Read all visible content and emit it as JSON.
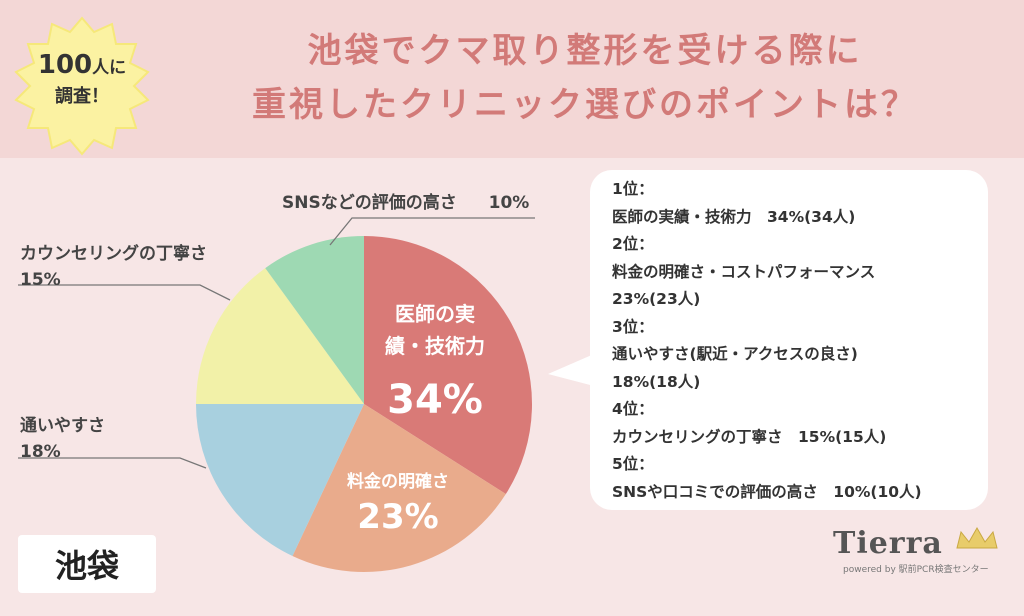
{
  "header": {
    "badge": {
      "number": "100",
      "suffix": "人に",
      "line2": "調査！"
    },
    "title_line1": "池袋でクマ取り整形を受ける際に",
    "title_line2": "重視したクリニック選びのポイントは？"
  },
  "chart_data": {
    "type": "pie",
    "slices": [
      {
        "label_line1": "医師の実",
        "label_line2": "績・技術力",
        "value": 34,
        "value_text": "34%",
        "color": "#d97a77"
      },
      {
        "label": "料金の明確さ",
        "value": 23,
        "value_text": "23%",
        "color": "#e9ab8c"
      },
      {
        "label": "通いやすさ",
        "value": 18,
        "value_text": "18%",
        "color": "#a8d0df"
      },
      {
        "label": "カウンセリングの丁寧さ",
        "value": 15,
        "value_text": "15%",
        "color": "#f2f1a8"
      },
      {
        "label": "SNSなどの評価の高さ",
        "value": 10,
        "value_text": "10%",
        "color": "#9ed9b3"
      }
    ]
  },
  "ranking": [
    "1位：",
    "医師の実績・技術力　34%(34人)",
    "2位：",
    "料金の明確さ・コストパフォーマンス",
    "23%(23人)",
    "3位：",
    "通いやすさ(駅近・アクセスの良さ)",
    "18%(18人)",
    "4位：",
    "カウンセリングの丁寧さ　15%(15人)",
    "5位：",
    "SNSや口コミでの評価の高さ　10%(10人)"
  ],
  "location": "池袋",
  "logo": {
    "name": "Tierra",
    "tagline": "powered by 駅前PCR検査センター"
  }
}
